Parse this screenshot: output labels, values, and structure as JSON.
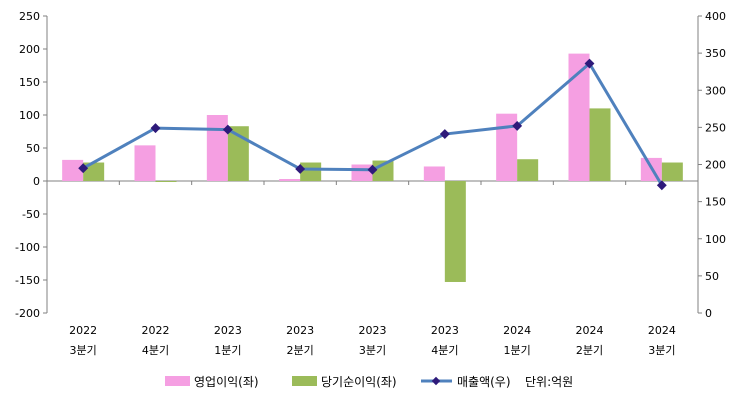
{
  "chart_data": {
    "type": "bar+line",
    "categories": [
      [
        "2022",
        "3분기"
      ],
      [
        "2022",
        "4분기"
      ],
      [
        "2023",
        "1분기"
      ],
      [
        "2023",
        "2분기"
      ],
      [
        "2023",
        "3분기"
      ],
      [
        "2023",
        "4분기"
      ],
      [
        "2024",
        "1분기"
      ],
      [
        "2024",
        "2분기"
      ],
      [
        "2024",
        "3분기"
      ]
    ],
    "series": [
      {
        "name": "영업이익(좌)",
        "type": "bar",
        "axis": "left",
        "color": "#f59fe2",
        "values": [
          32,
          54,
          100,
          3,
          25,
          22,
          102,
          193,
          35
        ]
      },
      {
        "name": "당기순이익(좌)",
        "type": "bar",
        "axis": "left",
        "color": "#9bbb59",
        "values": [
          28,
          -1,
          83,
          28,
          31,
          -153,
          33,
          110,
          28
        ]
      },
      {
        "name": "매출액(우)",
        "type": "line",
        "axis": "right",
        "color": "#4f81bd",
        "marker_color": "#2e1a7a",
        "values": [
          195,
          249,
          247,
          194,
          193,
          241,
          252,
          336,
          172
        ]
      }
    ],
    "y_left": {
      "min": -200,
      "max": 250,
      "step": 50
    },
    "y_right": {
      "min": 0,
      "max": 400,
      "step": 50
    },
    "unit_note": "단위:억원",
    "legend_position": "bottom"
  }
}
